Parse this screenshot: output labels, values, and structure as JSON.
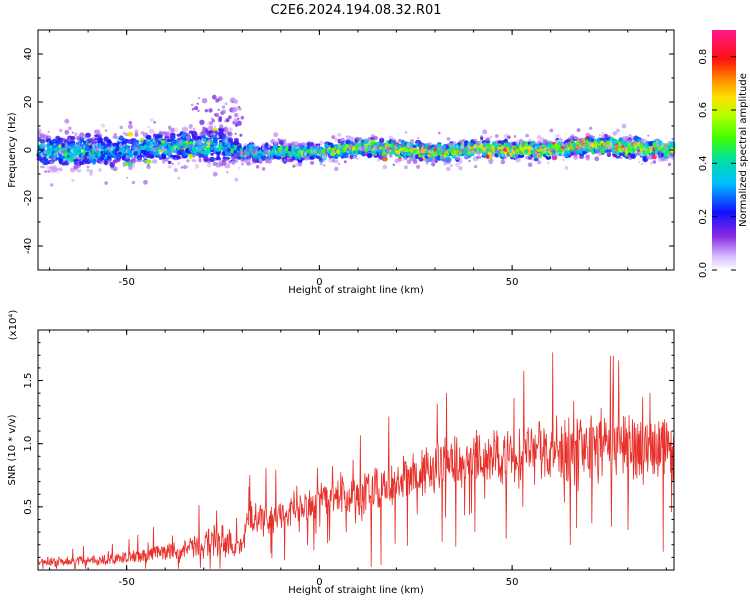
{
  "title": "C2E6.2024.194.08.32.R01",
  "colors": {
    "snr_line": "#e8302a",
    "axis": "#000000"
  },
  "chart_data": [
    {
      "type": "heatmap",
      "name": "spectrogram",
      "xlabel": "Height of straight line (km)",
      "ylabel": "Frequency (Hz)",
      "xlim": [
        -73,
        92
      ],
      "ylim": [
        -50,
        50
      ],
      "xticks": [
        "-50",
        "0",
        "50"
      ],
      "xtick_values": [
        -50,
        0,
        50
      ],
      "yticks": [
        "40",
        "20",
        "0",
        "-20",
        "-40"
      ],
      "ytick_values": [
        40,
        20,
        0,
        -20,
        -40
      ],
      "colorbar": {
        "label": "Normalized spectral amplitude",
        "ticks": [
          "0.0",
          "0.2",
          "0.4",
          "0.6",
          "0.8"
        ],
        "tick_values": [
          0.0,
          0.2,
          0.4,
          0.6,
          0.8
        ],
        "range": [
          0,
          0.9
        ],
        "colormap": "rainbow"
      },
      "ridge": {
        "x": [
          -73,
          -60,
          -50,
          -40,
          -30,
          -25,
          -22,
          -20,
          -15,
          -10,
          0,
          10,
          20,
          30,
          40,
          50,
          60,
          70,
          80,
          92
        ],
        "center_hz": [
          0,
          -1,
          0,
          1,
          2,
          2,
          0,
          -1,
          -1,
          -1,
          -1,
          1,
          0,
          -1,
          1,
          0,
          0,
          2,
          1,
          0
        ],
        "amplitude": [
          0.4,
          0.42,
          0.38,
          0.4,
          0.45,
          0.35,
          0.4,
          0.45,
          0.45,
          0.48,
          0.5,
          0.6,
          0.6,
          0.62,
          0.62,
          0.65,
          0.65,
          0.7,
          0.68,
          0.6
        ],
        "spread_hz": [
          7,
          8,
          7,
          7,
          7,
          10,
          6,
          4,
          4,
          4,
          4,
          4,
          4,
          4,
          4,
          4,
          4,
          4,
          4,
          4
        ]
      }
    },
    {
      "type": "line",
      "name": "snr",
      "xlabel": "Height of straight line (km)",
      "ylabel": "SNR (10 * v/v)",
      "y_multiplier": "(x10⁴)",
      "xlim": [
        -73,
        92
      ],
      "ylim": [
        0,
        1.9
      ],
      "xticks": [
        "-50",
        "0",
        "50"
      ],
      "xtick_values": [
        -50,
        0,
        50
      ],
      "yticks": [
        "0.5",
        "1.0",
        "1.5"
      ],
      "ytick_values": [
        0.5,
        1.0,
        1.5
      ],
      "envelope": {
        "x": [
          -73,
          -55,
          -45,
          -35,
          -25,
          -20,
          -19,
          -10,
          0,
          8,
          9,
          20,
          30,
          40,
          50,
          60,
          70,
          80,
          92
        ],
        "mean": [
          0.06,
          0.08,
          0.12,
          0.17,
          0.24,
          0.17,
          0.38,
          0.42,
          0.55,
          0.62,
          0.55,
          0.72,
          0.82,
          0.9,
          0.92,
          0.95,
          0.95,
          0.95,
          0.95
        ],
        "spread": [
          0.05,
          0.07,
          0.1,
          0.14,
          0.25,
          0.1,
          0.22,
          0.2,
          0.2,
          0.25,
          0.3,
          0.3,
          0.32,
          0.35,
          0.38,
          0.42,
          0.42,
          0.4,
          0.4
        ]
      }
    }
  ]
}
